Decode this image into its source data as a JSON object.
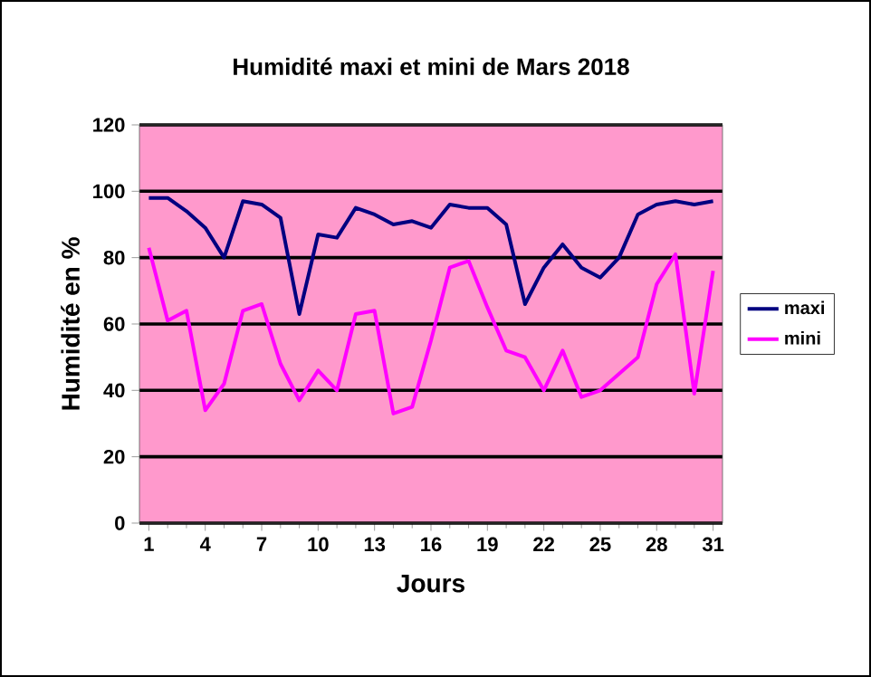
{
  "chart_data": {
    "type": "line",
    "title": "Humidité maxi et mini de Mars 2018",
    "xlabel": "Jours",
    "ylabel": "Humidité en %",
    "x": [
      1,
      2,
      3,
      4,
      5,
      6,
      7,
      8,
      9,
      10,
      11,
      12,
      13,
      14,
      15,
      16,
      17,
      18,
      19,
      20,
      21,
      22,
      23,
      24,
      25,
      26,
      27,
      28,
      29,
      30,
      31
    ],
    "series": [
      {
        "name": "maxi",
        "color": "#000080",
        "values": [
          98,
          98,
          94,
          89,
          80,
          97,
          96,
          92,
          63,
          87,
          86,
          95,
          93,
          90,
          91,
          89,
          96,
          95,
          95,
          90,
          66,
          77,
          84,
          77,
          74,
          80,
          93,
          96,
          97,
          96,
          97
        ]
      },
      {
        "name": "mini",
        "color": "#ff00ff",
        "values": [
          83,
          61,
          64,
          34,
          42,
          64,
          66,
          48,
          37,
          46,
          40,
          63,
          64,
          33,
          35,
          55,
          77,
          79,
          65,
          52,
          50,
          40,
          52,
          38,
          40,
          45,
          50,
          72,
          81,
          39,
          76
        ]
      }
    ],
    "xlim": [
      0.5,
      31.5
    ],
    "xticks": [
      1,
      4,
      7,
      10,
      13,
      16,
      19,
      22,
      25,
      28,
      31
    ],
    "ylim": [
      0,
      120
    ],
    "yticks": [
      0,
      20,
      40,
      60,
      80,
      100,
      120
    ],
    "grid": "y",
    "legend": "right",
    "marker": "none",
    "line_style": "solid"
  }
}
